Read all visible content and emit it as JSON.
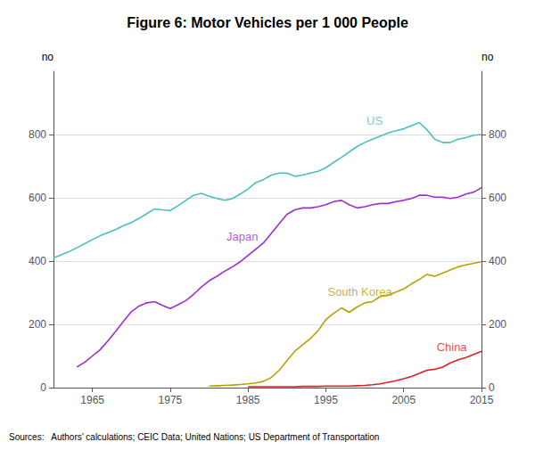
{
  "chart_data": {
    "type": "line",
    "title": "Figure 6: Motor Vehicles per 1 000 People",
    "source": "Sources:   Authors’ calculations; CEIC Data; United Nations; US Department of Transportation",
    "ylabel": "no",
    "y2label": "no",
    "xlim": [
      1960,
      2015
    ],
    "xticks": [
      1965,
      1975,
      1985,
      1995,
      2005,
      2015
    ],
    "ylim": [
      0,
      1000
    ],
    "yticks": [
      0,
      200,
      400,
      600,
      800
    ],
    "y2lim": [
      0,
      1000
    ],
    "y2ticks": [
      0,
      200,
      400,
      600,
      800
    ],
    "grid": true,
    "series": [
      {
        "name": "US",
        "color": "#4bbfbf",
        "x": [
          1960,
          1961,
          1962,
          1963,
          1964,
          1965,
          1966,
          1967,
          1968,
          1969,
          1970,
          1971,
          1972,
          1973,
          1974,
          1975,
          1976,
          1977,
          1978,
          1979,
          1980,
          1981,
          1982,
          1983,
          1984,
          1985,
          1986,
          1987,
          1988,
          1989,
          1990,
          1991,
          1992,
          1993,
          1994,
          1995,
          1996,
          1997,
          1998,
          1999,
          2000,
          2001,
          2002,
          2003,
          2004,
          2005,
          2006,
          2007,
          2008,
          2009,
          2010,
          2011,
          2012,
          2013,
          2014,
          2015
        ],
        "values": [
          410,
          420,
          430,
          442,
          455,
          468,
          480,
          490,
          500,
          512,
          522,
          535,
          550,
          565,
          562,
          560,
          575,
          592,
          608,
          614,
          605,
          598,
          592,
          598,
          612,
          628,
          648,
          658,
          672,
          678,
          678,
          668,
          672,
          678,
          684,
          695,
          712,
          728,
          745,
          762,
          775,
          785,
          795,
          805,
          812,
          818,
          828,
          838,
          815,
          785,
          775,
          775,
          785,
          790,
          798,
          800
        ]
      },
      {
        "name": "Japan",
        "color": "#9b30d0",
        "x": [
          1963,
          1964,
          1965,
          1966,
          1967,
          1968,
          1969,
          1970,
          1971,
          1972,
          1973,
          1974,
          1975,
          1976,
          1977,
          1978,
          1979,
          1980,
          1981,
          1982,
          1983,
          1984,
          1985,
          1986,
          1987,
          1988,
          1989,
          1990,
          1991,
          1992,
          1993,
          1994,
          1995,
          1996,
          1997,
          1998,
          1999,
          2000,
          2001,
          2002,
          2003,
          2004,
          2005,
          2006,
          2007,
          2008,
          2009,
          2010,
          2011,
          2012,
          2013,
          2014,
          2015
        ],
        "values": [
          65,
          80,
          100,
          120,
          148,
          178,
          210,
          240,
          258,
          268,
          272,
          260,
          250,
          262,
          275,
          295,
          318,
          338,
          352,
          368,
          382,
          398,
          418,
          438,
          458,
          488,
          518,
          548,
          562,
          568,
          568,
          572,
          578,
          588,
          592,
          578,
          568,
          572,
          578,
          582,
          582,
          588,
          592,
          598,
          608,
          608,
          602,
          602,
          598,
          602,
          612,
          618,
          632
        ]
      },
      {
        "name": "South Korea",
        "color": "#b8a000",
        "x": [
          1980,
          1981,
          1982,
          1983,
          1984,
          1985,
          1986,
          1987,
          1988,
          1989,
          1990,
          1991,
          1992,
          1993,
          1994,
          1995,
          1996,
          1997,
          1998,
          1999,
          2000,
          2001,
          2002,
          2003,
          2004,
          2005,
          2006,
          2007,
          2008,
          2009,
          2010,
          2011,
          2012,
          2013,
          2014,
          2015
        ],
        "values": [
          5,
          6,
          7,
          8,
          10,
          12,
          15,
          20,
          32,
          55,
          85,
          115,
          135,
          155,
          180,
          215,
          235,
          252,
          238,
          255,
          268,
          272,
          288,
          292,
          302,
          312,
          328,
          342,
          358,
          352,
          362,
          372,
          382,
          388,
          393,
          398
        ]
      },
      {
        "name": "China",
        "color": "#e02020",
        "x": [
          1985,
          1986,
          1987,
          1988,
          1989,
          1990,
          1991,
          1992,
          1993,
          1994,
          1995,
          1996,
          1997,
          1998,
          1999,
          2000,
          2001,
          2002,
          2003,
          2004,
          2005,
          2006,
          2007,
          2008,
          2009,
          2010,
          2011,
          2012,
          2013,
          2014,
          2015
        ],
        "values": [
          3,
          3,
          3,
          3,
          3,
          3,
          3,
          4,
          4,
          4,
          5,
          5,
          5,
          5,
          6,
          7,
          9,
          12,
          17,
          22,
          28,
          35,
          45,
          55,
          58,
          65,
          78,
          88,
          95,
          105,
          115
        ]
      }
    ],
    "annotations": [
      {
        "text": "US",
        "x": 2000,
        "y": 845,
        "color": "#4bbfbf"
      },
      {
        "text": "Japan",
        "x": 1982,
        "y": 478,
        "color": "#9b30d0"
      },
      {
        "text": "South Korea",
        "x": 1995,
        "y": 302,
        "color": "#b8a000"
      },
      {
        "text": "China",
        "x": 2009,
        "y": 128,
        "color": "#e02020"
      }
    ]
  }
}
